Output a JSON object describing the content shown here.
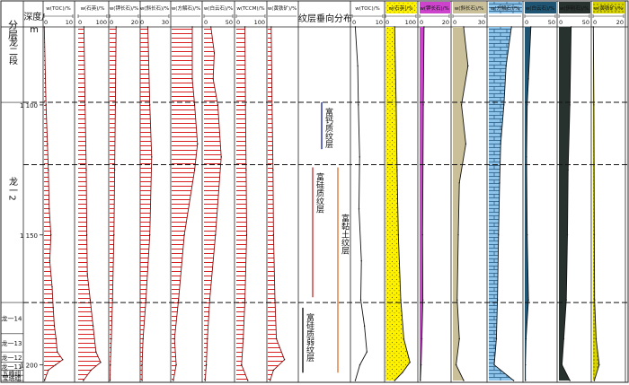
{
  "header": {
    "stratum_label": "分层",
    "depth_label": "深度/",
    "depth_unit": "m",
    "lamina_header": "纹层垂向分布"
  },
  "strata": [
    {
      "label": "龙二段",
      "top": 1070,
      "bottom": 1099
    },
    {
      "label": "龙一2",
      "top": 1099,
      "bottom": 1176
    },
    {
      "label": "龙一14",
      "top": 1176,
      "bottom": 1188
    },
    {
      "label": "龙一13",
      "top": 1188,
      "bottom": 1195
    },
    {
      "label": "龙一12",
      "top": 1195,
      "bottom": 1199
    },
    {
      "label": "龙一11",
      "top": 1199,
      "bottom": 1202
    },
    {
      "label": "五峰组",
      "top": 1202,
      "bottom": 1204
    },
    {
      "label": "宝塔组",
      "top": 1204,
      "bottom": 1206
    }
  ],
  "depth_ticks": [
    {
      "depth": 1100,
      "label": "1 100"
    },
    {
      "depth": 1150,
      "label": "1 150"
    },
    {
      "depth": 1200,
      "label": "1 200"
    }
  ],
  "boundaries": [
    1099,
    1123,
    1176
  ],
  "lamina_zones": [
    {
      "label": "富钙质纹层",
      "top": 1099,
      "bottom": 1117,
      "color": "#1f2fa8"
    },
    {
      "label": "富硅质纹层",
      "top": 1124,
      "bottom": 1174,
      "color": "#c83a3a"
    },
    {
      "label": "富黏土纹层",
      "top": 1124,
      "bottom": 1203,
      "color": "#e07b39"
    },
    {
      "label": "富硅质弱纹层",
      "top": 1178,
      "bottom": 1203,
      "color": "#111111"
    }
  ],
  "chart_data": {
    "type": "line",
    "title": "",
    "y_axis": {
      "label": "深度/m",
      "range": [
        1070,
        1206
      ],
      "reversed": true
    },
    "series": [
      {
        "name": "w(TOC)/%",
        "axis_ticks": [
          0,
          10
        ],
        "max": 10,
        "fill": "#d81e1e",
        "style": "hatched",
        "values": [
          [
            1070,
            0.1
          ],
          [
            1100,
            0.7
          ],
          [
            1115,
            1.2
          ],
          [
            1125,
            1.5
          ],
          [
            1140,
            1.8
          ],
          [
            1150,
            2.4
          ],
          [
            1160,
            2.0
          ],
          [
            1170,
            2.8
          ],
          [
            1178,
            3.2
          ],
          [
            1185,
            3.6
          ],
          [
            1190,
            4.2
          ],
          [
            1195,
            4.6
          ],
          [
            1198,
            6.5
          ],
          [
            1200,
            4.0
          ],
          [
            1202,
            1.5
          ],
          [
            1206,
            0.2
          ]
        ]
      },
      {
        "name": "w(石英)/%",
        "axis_ticks": [
          0,
          100
        ],
        "max": 100,
        "fill": "#d81e1e",
        "style": "hatched",
        "values": [
          [
            1070,
            20
          ],
          [
            1100,
            24
          ],
          [
            1125,
            28
          ],
          [
            1150,
            30
          ],
          [
            1165,
            32
          ],
          [
            1175,
            42
          ],
          [
            1185,
            52
          ],
          [
            1195,
            62
          ],
          [
            1199,
            78
          ],
          [
            1202,
            45
          ],
          [
            1206,
            18
          ]
        ]
      },
      {
        "name": "w(钾长石)/%",
        "axis_ticks": [
          0,
          20
        ],
        "max": 20,
        "fill": "#d81e1e",
        "style": "hatched",
        "values": [
          [
            1070,
            4.5
          ],
          [
            1100,
            4.0
          ],
          [
            1125,
            3.5
          ],
          [
            1150,
            3.0
          ],
          [
            1175,
            2.0
          ],
          [
            1190,
            1.2
          ],
          [
            1200,
            0.5
          ],
          [
            1206,
            0.3
          ]
        ]
      },
      {
        "name": "w(斜长石)/%",
        "axis_ticks": [
          0,
          30
        ],
        "max": 30,
        "fill": "#d81e1e",
        "style": "hatched",
        "values": [
          [
            1070,
            8
          ],
          [
            1100,
            10
          ],
          [
            1120,
            12
          ],
          [
            1150,
            10
          ],
          [
            1175,
            6
          ],
          [
            1190,
            3
          ],
          [
            1200,
            2
          ],
          [
            1206,
            2
          ]
        ]
      },
      {
        "name": "w(方解石)/%",
        "axis_ticks": [],
        "max": 50,
        "fill": "#d81e1e",
        "style": "hatched",
        "values": [
          [
            1070,
            36
          ],
          [
            1090,
            36
          ],
          [
            1100,
            40
          ],
          [
            1115,
            45
          ],
          [
            1125,
            40
          ],
          [
            1150,
            22
          ],
          [
            1175,
            12
          ],
          [
            1190,
            5
          ],
          [
            1200,
            8
          ],
          [
            1206,
            3
          ]
        ]
      },
      {
        "name": "w(白云石)/%",
        "axis_ticks": [
          0,
          50
        ],
        "max": 50,
        "fill": "#d81e1e",
        "style": "hatched",
        "values": [
          [
            1070,
            12
          ],
          [
            1080,
            18
          ],
          [
            1090,
            16
          ],
          [
            1100,
            24
          ],
          [
            1120,
            30
          ],
          [
            1150,
            20
          ],
          [
            1175,
            10
          ],
          [
            1190,
            6
          ],
          [
            1200,
            4
          ],
          [
            1206,
            2
          ]
        ]
      },
      {
        "name": "w(TCCM)/%",
        "axis_ticks": [
          0,
          100
        ],
        "max": 100,
        "fill": "#d81e1e",
        "style": "hatched",
        "values": [
          [
            1070,
            30
          ],
          [
            1100,
            32
          ],
          [
            1125,
            34
          ],
          [
            1150,
            36
          ],
          [
            1175,
            30
          ],
          [
            1190,
            24
          ],
          [
            1200,
            18
          ],
          [
            1206,
            40
          ]
        ]
      },
      {
        "name": "w(黄铁矿)/%",
        "axis_ticks": [],
        "max": 10,
        "fill": "#d81e1e",
        "style": "hatched",
        "values": [
          [
            1070,
            1.2
          ],
          [
            1100,
            1.5
          ],
          [
            1125,
            1.8
          ],
          [
            1150,
            2.0
          ],
          [
            1175,
            2.5
          ],
          [
            1190,
            3.0
          ],
          [
            1198,
            5.8
          ],
          [
            1202,
            2.0
          ],
          [
            1206,
            0.8
          ]
        ]
      },
      {
        "name": "w(TOC)/%",
        "axis_ticks": [
          0,
          10
        ],
        "max": 10,
        "fill": "none",
        "style": "line",
        "values": [
          [
            1070,
            1.0
          ],
          [
            1085,
            1.8
          ],
          [
            1100,
            2.0
          ],
          [
            1120,
            2.4
          ],
          [
            1140,
            2.2
          ],
          [
            1160,
            3.0
          ],
          [
            1175,
            2.8
          ],
          [
            1185,
            4.0
          ],
          [
            1195,
            4.8
          ],
          [
            1200,
            2.5
          ],
          [
            1206,
            1.0
          ]
        ]
      },
      {
        "name": "w(石英)/%",
        "axis_ticks": [
          0,
          100
        ],
        "max": 100,
        "fill": "#fff200",
        "style": "dotted",
        "values": [
          [
            1070,
            30
          ],
          [
            1100,
            35
          ],
          [
            1125,
            38
          ],
          [
            1150,
            42
          ],
          [
            1175,
            50
          ],
          [
            1190,
            60
          ],
          [
            1199,
            80
          ],
          [
            1203,
            55
          ],
          [
            1206,
            30
          ]
        ]
      },
      {
        "name": "w(钾长石)/%",
        "axis_ticks": [
          0,
          20
        ],
        "max": 20,
        "fill": "#cc44cc",
        "style": "solid",
        "values": [
          [
            1070,
            3
          ],
          [
            1100,
            2.5
          ],
          [
            1150,
            2.0
          ],
          [
            1175,
            2.2
          ],
          [
            1190,
            1.5
          ],
          [
            1200,
            1.0
          ],
          [
            1206,
            0.5
          ]
        ]
      },
      {
        "name": "w(斜长石)/%",
        "axis_ticks": [
          0,
          30
        ],
        "max": 30,
        "fill": "#c9c09a",
        "style": "solid",
        "values": [
          [
            1070,
            10
          ],
          [
            1085,
            14
          ],
          [
            1100,
            8
          ],
          [
            1115,
            12
          ],
          [
            1130,
            6
          ],
          [
            1150,
            5
          ],
          [
            1175,
            4
          ],
          [
            1190,
            6
          ],
          [
            1200,
            3
          ],
          [
            1206,
            10
          ]
        ]
      },
      {
        "name": "w(方解石)/%",
        "axis_ticks": [],
        "max": 60,
        "fill": "#8fc4ea",
        "style": "bricks",
        "values": [
          [
            1070,
            42
          ],
          [
            1085,
            32
          ],
          [
            1100,
            28
          ],
          [
            1115,
            22
          ],
          [
            1130,
            20
          ],
          [
            1150,
            18
          ],
          [
            1175,
            16
          ],
          [
            1190,
            14
          ],
          [
            1200,
            10
          ],
          [
            1206,
            46
          ]
        ]
      },
      {
        "name": "w(白云石)/%",
        "axis_ticks": [
          0,
          50
        ],
        "max": 50,
        "fill": "#1f5573",
        "style": "solid",
        "values": [
          [
            1070,
            10
          ],
          [
            1090,
            6
          ],
          [
            1100,
            4
          ],
          [
            1120,
            3
          ],
          [
            1150,
            4
          ],
          [
            1175,
            6
          ],
          [
            1190,
            2
          ],
          [
            1200,
            1
          ],
          [
            1206,
            1
          ]
        ]
      },
      {
        "name": "w(伊利石)/%",
        "axis_ticks": [
          0,
          50
        ],
        "max": 50,
        "fill": "#27312e",
        "style": "solid",
        "values": [
          [
            1070,
            20
          ],
          [
            1100,
            18
          ],
          [
            1125,
            15
          ],
          [
            1150,
            14
          ],
          [
            1175,
            12
          ],
          [
            1190,
            8
          ],
          [
            1200,
            5
          ],
          [
            1206,
            18
          ]
        ]
      },
      {
        "name": "w(黄铁矿)/%",
        "axis_ticks": [
          0,
          20
        ],
        "max": 20,
        "fill": "#d7d300",
        "style": "dotted",
        "values": [
          [
            1070,
            0.2
          ],
          [
            1100,
            0.5
          ],
          [
            1150,
            0.8
          ],
          [
            1175,
            1.0
          ],
          [
            1190,
            2.0
          ],
          [
            1200,
            4.0
          ],
          [
            1206,
            0.8
          ]
        ]
      }
    ]
  }
}
